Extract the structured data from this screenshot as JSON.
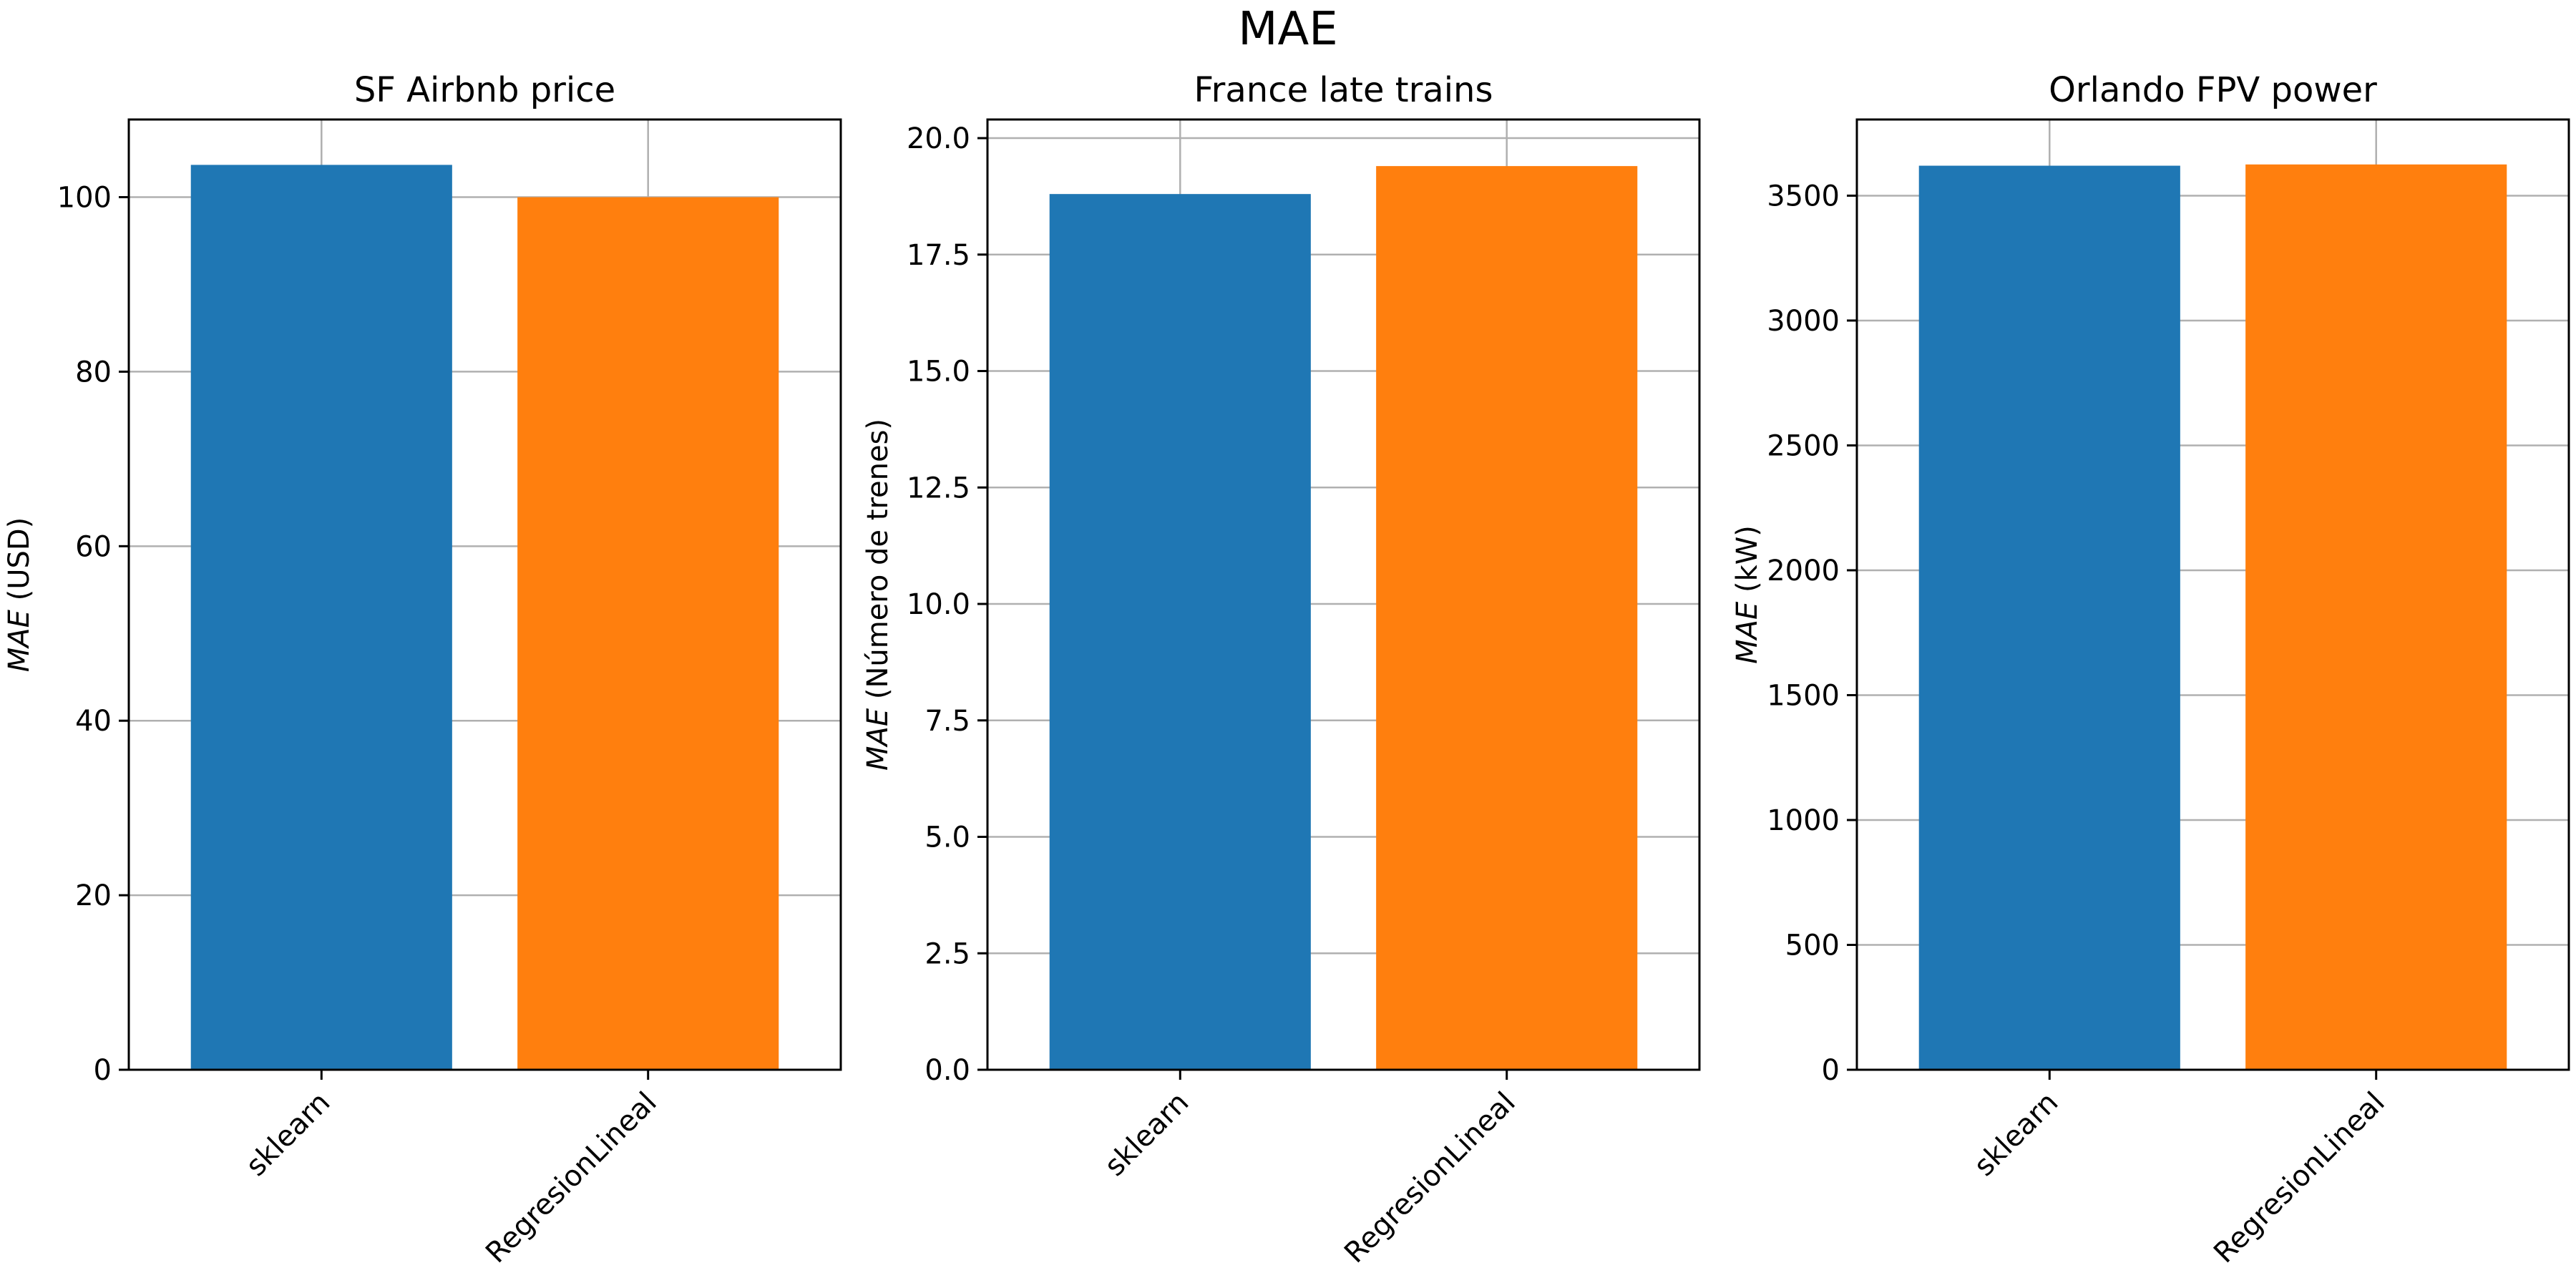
{
  "figure_title": "MAE",
  "colors": {
    "sklearn": "#1f77b4",
    "RegresionLineal": "#ff7f0e",
    "grid": "#b0b0b0"
  },
  "chart_data": [
    {
      "type": "bar",
      "title": "SF Airbnb price",
      "ylabel_var": "MAE",
      "ylabel_unit": "(USD)",
      "categories": [
        "sklearn",
        "RegresionLineal"
      ],
      "values": [
        103.7,
        100.0
      ],
      "ylim": [
        0,
        108.9
      ],
      "yticks": [
        0,
        20,
        40,
        60,
        80,
        100
      ],
      "ytick_labels": [
        "0",
        "20",
        "40",
        "60",
        "80",
        "100"
      ],
      "grid": true
    },
    {
      "type": "bar",
      "title": "France late trains",
      "ylabel_var": "MAE",
      "ylabel_unit": "(Número de trenes)",
      "categories": [
        "sklearn",
        "RegresionLineal"
      ],
      "values": [
        18.8,
        19.4
      ],
      "ylim": [
        0,
        20.4
      ],
      "yticks": [
        0,
        2.5,
        5,
        7.5,
        10,
        12.5,
        15,
        17.5,
        20
      ],
      "ytick_labels": [
        "0.0",
        "2.5",
        "5.0",
        "7.5",
        "10.0",
        "12.5",
        "15.0",
        "17.5",
        "20.0"
      ],
      "grid": true
    },
    {
      "type": "bar",
      "title": "Orlando FPV power",
      "ylabel_var": "MAE",
      "ylabel_unit": "(kW)",
      "categories": [
        "sklearn",
        "RegresionLineal"
      ],
      "values": [
        3620,
        3625
      ],
      "ylim": [
        0,
        3805
      ],
      "yticks": [
        0,
        500,
        1000,
        1500,
        2000,
        2500,
        3000,
        3500
      ],
      "ytick_labels": [
        "0",
        "500",
        "1000",
        "1500",
        "2000",
        "2500",
        "3000",
        "3500"
      ],
      "grid": true
    }
  ]
}
